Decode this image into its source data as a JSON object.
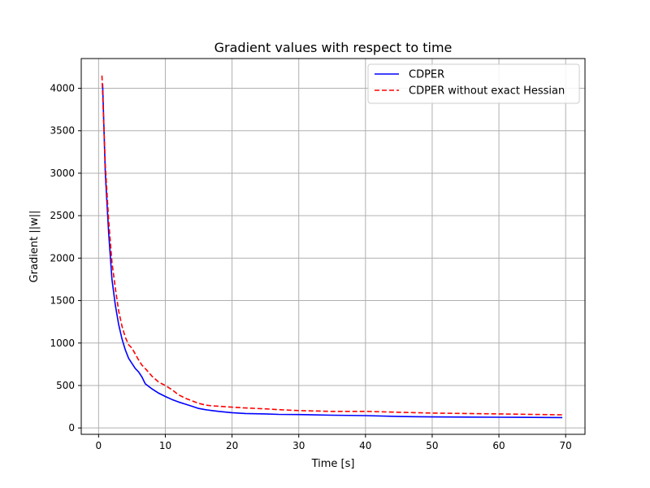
{
  "chart_data": {
    "type": "line",
    "title": "Gradient values with respect to time",
    "xlabel": "Time [s]",
    "ylabel": "Gradient ||w||",
    "xlim": [
      -2.6,
      72.9
    ],
    "ylim": [
      -75,
      4350
    ],
    "xticks": [
      0,
      10,
      20,
      30,
      40,
      50,
      60,
      70
    ],
    "yticks": [
      0,
      500,
      1000,
      1500,
      2000,
      2500,
      3000,
      3500,
      4000
    ],
    "grid": true,
    "legend_position": "top-right",
    "series": [
      {
        "name": "CDPER",
        "color": "#0000ff",
        "style": "solid",
        "x": [
          0.6,
          1.0,
          1.5,
          2.0,
          2.5,
          3.0,
          3.5,
          4.0,
          4.5,
          5.0,
          5.5,
          6.0,
          6.5,
          7.0,
          7.5,
          8.0,
          9.0,
          10.0,
          11.0,
          12.0,
          13.0,
          14.0,
          15.0,
          16.0,
          17.0,
          18.0,
          20.0,
          22.0,
          25.0,
          27.0,
          30.0,
          35.0,
          40.0,
          45.0,
          50.0,
          55.0,
          60.0,
          65.0,
          69.5
        ],
        "y": [
          4050,
          3000,
          2300,
          1750,
          1450,
          1220,
          1050,
          920,
          820,
          760,
          700,
          660,
          600,
          520,
          490,
          460,
          410,
          370,
          335,
          305,
          280,
          255,
          230,
          215,
          205,
          195,
          180,
          170,
          165,
          160,
          158,
          150,
          145,
          135,
          130,
          128,
          126,
          124,
          122
        ]
      },
      {
        "name": "CDPER without exact Hessian",
        "color": "#ff0000",
        "style": "dashed",
        "x": [
          0.5,
          1.0,
          1.5,
          2.0,
          2.5,
          3.0,
          3.5,
          4.0,
          4.5,
          5.0,
          5.5,
          6.0,
          6.5,
          7.0,
          8.0,
          9.0,
          10.0,
          11.0,
          12.0,
          13.0,
          14.0,
          15.0,
          16.0,
          17.0,
          18.0,
          20.0,
          22.0,
          25.0,
          27.0,
          30.0,
          35.0,
          40.0,
          45.0,
          50.0,
          55.0,
          60.0,
          65.0,
          69.5
        ],
        "y": [
          4150,
          3100,
          2450,
          1950,
          1650,
          1380,
          1200,
          1070,
          980,
          940,
          870,
          800,
          740,
          700,
          610,
          540,
          500,
          450,
          390,
          350,
          320,
          290,
          270,
          260,
          255,
          245,
          235,
          225,
          215,
          205,
          195,
          195,
          185,
          175,
          170,
          165,
          160,
          155
        ]
      }
    ]
  }
}
